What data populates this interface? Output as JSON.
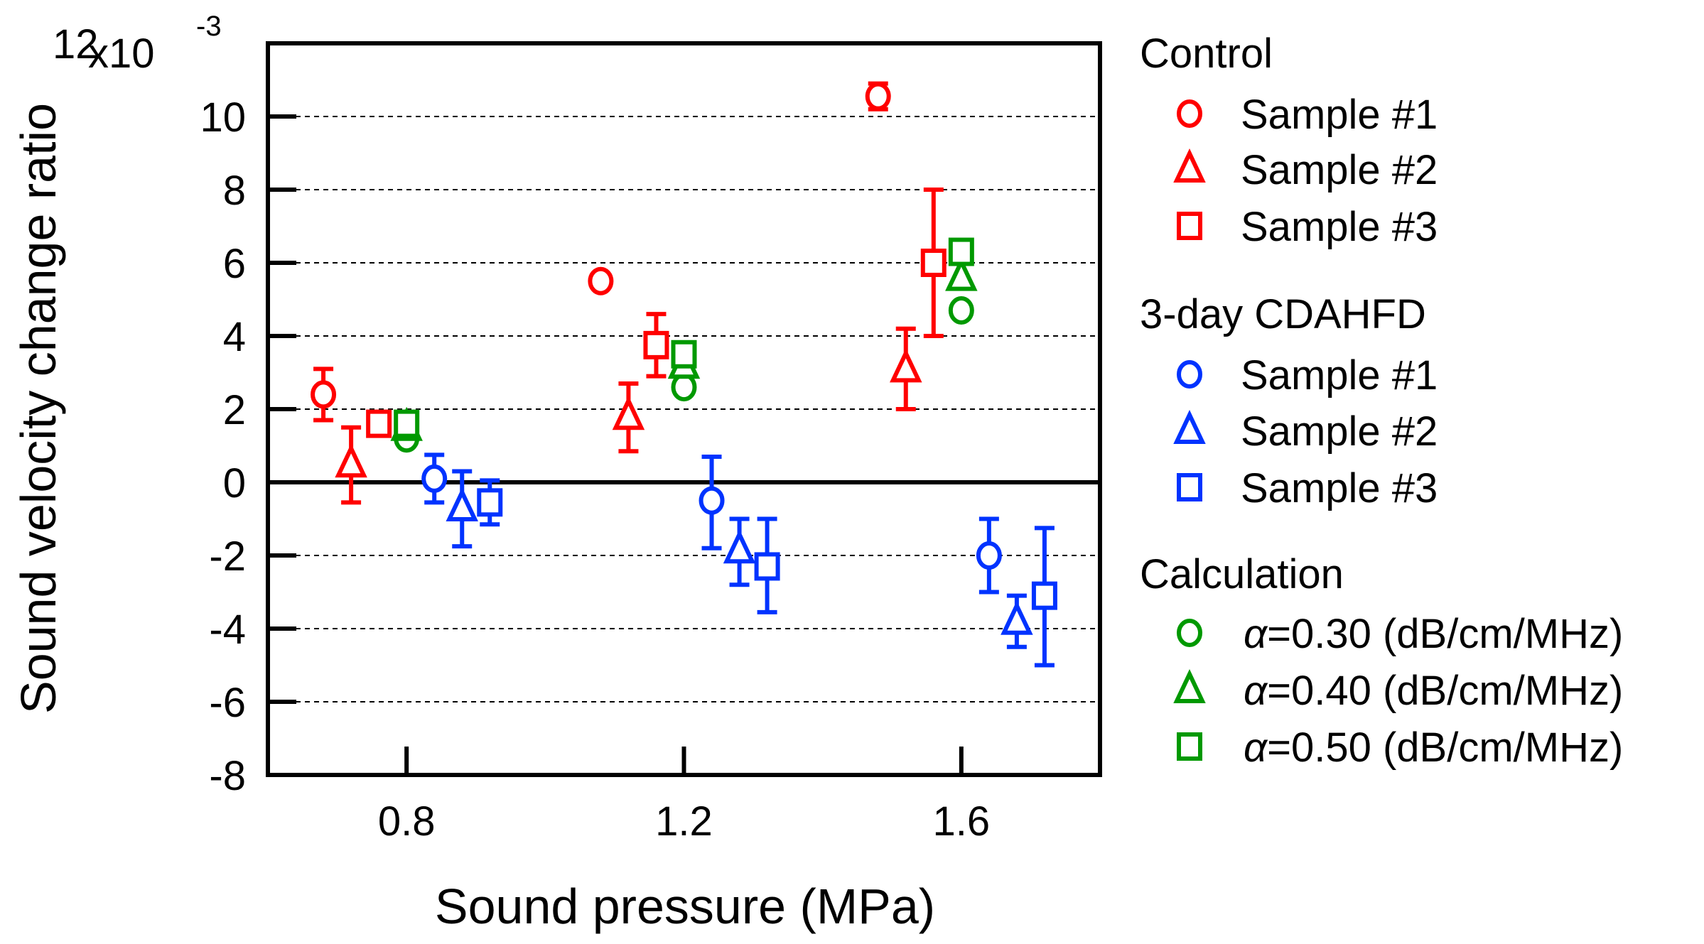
{
  "chart_data": {
    "type": "scatter",
    "xlabel": "Sound pressure (MPa)",
    "ylabel": "Sound velocity change ratio",
    "y_multiplier_label": "x10",
    "y_multiplier_exp": "-3",
    "xlim": [
      0.6,
      1.8
    ],
    "ylim": [
      -8,
      12
    ],
    "x_ticks": [
      0.8,
      1.2,
      1.6
    ],
    "x_tick_labels": [
      "0.8",
      "1.2",
      "1.6"
    ],
    "y_ticks": [
      -8,
      -6,
      -4,
      -2,
      0,
      2,
      4,
      6,
      8,
      10,
      12
    ],
    "y_tick_labels": [
      "-8",
      "-6",
      "-4",
      "-2",
      "0",
      "2",
      "4",
      "6",
      "8",
      "10",
      "12"
    ],
    "grid": "horizontal dashed",
    "legend_placement": "right-outside",
    "groups": [
      {
        "title": "Control",
        "color": "#ff0000",
        "series": [
          {
            "name": "Sample #1",
            "marker": "circle",
            "x": [
              0.68,
              1.08,
              1.48
            ],
            "y": [
              2.4,
              5.5,
              10.55
            ],
            "err_low": [
              1.7,
              5.4,
              10.2
            ],
            "err_high": [
              3.1,
              5.6,
              10.9
            ]
          },
          {
            "name": "Sample #2",
            "marker": "triangle",
            "x": [
              0.72,
              1.12,
              1.52
            ],
            "y": [
              0.5,
              1.8,
              3.1
            ],
            "err_low": [
              -0.55,
              0.85,
              2.0
            ],
            "err_high": [
              1.5,
              2.7,
              4.2
            ]
          },
          {
            "name": "Sample #3",
            "marker": "square",
            "x": [
              0.76,
              1.16,
              1.56
            ],
            "y": [
              1.6,
              3.75,
              6.0
            ],
            "err_low": [
              1.3,
              2.9,
              4.0
            ],
            "err_high": [
              1.9,
              4.6,
              8.0
            ]
          }
        ]
      },
      {
        "title": "3-day CDAHFD",
        "color": "#0033ff",
        "series": [
          {
            "name": "Sample #1",
            "marker": "circle",
            "x": [
              0.84,
              1.24,
              1.64
            ],
            "y": [
              0.1,
              -0.5,
              -2.0
            ],
            "err_low": [
              -0.55,
              -1.8,
              -3.0
            ],
            "err_high": [
              0.75,
              0.7,
              -1.0
            ]
          },
          {
            "name": "Sample #2",
            "marker": "triangle",
            "x": [
              0.88,
              1.28,
              1.68
            ],
            "y": [
              -0.7,
              -1.85,
              -3.8
            ],
            "err_low": [
              -1.75,
              -2.8,
              -4.5
            ],
            "err_high": [
              0.3,
              -1.0,
              -3.1
            ]
          },
          {
            "name": "Sample #3",
            "marker": "square",
            "x": [
              0.92,
              1.32,
              1.72
            ],
            "y": [
              -0.55,
              -2.3,
              -3.1
            ],
            "err_low": [
              -1.15,
              -3.55,
              -5.0
            ],
            "err_high": [
              0.05,
              -1.0,
              -1.25
            ]
          }
        ]
      },
      {
        "title": "Calculation",
        "color": "#009900",
        "series": [
          {
            "name": "=0.30 (dB/cm/MHz)",
            "symbol": "α",
            "marker": "circle",
            "x": [
              0.8,
              1.2,
              1.6
            ],
            "y": [
              1.2,
              2.6,
              4.7
            ]
          },
          {
            "name": "=0.40 (dB/cm/MHz)",
            "symbol": "α",
            "marker": "triangle",
            "x": [
              0.8,
              1.2,
              1.6
            ],
            "y": [
              1.5,
              3.2,
              5.6
            ]
          },
          {
            "name": "=0.50 (dB/cm/MHz)",
            "symbol": "α",
            "marker": "square",
            "x": [
              0.8,
              1.2,
              1.6
            ],
            "y": [
              1.6,
              3.5,
              6.3
            ]
          }
        ]
      }
    ]
  }
}
